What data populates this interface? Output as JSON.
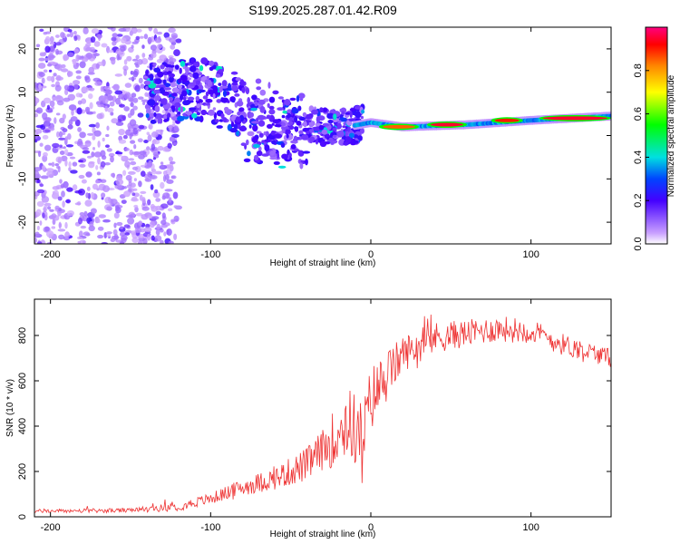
{
  "title": "S199.2025.287.01.42.R09",
  "colors": {
    "snr_line": "#ee3333",
    "frame": "#000000"
  },
  "chart_data": [
    {
      "type": "heatmap",
      "name": "spectrogram",
      "xlabel": "Height of straight line (km)",
      "ylabel": "Frequency (Hz)",
      "xlim": [
        -210,
        150
      ],
      "ylim": [
        -25,
        25
      ],
      "xticks": [
        -200,
        -100,
        0,
        100
      ],
      "yticks": [
        -20,
        -10,
        0,
        10,
        20
      ],
      "colorbar": {
        "label": "Normalized spectral amplitude",
        "range": [
          0,
          1
        ],
        "ticks": [
          "0.0",
          "0.2",
          "0.4",
          "0.6",
          "0.8"
        ],
        "tick_values": [
          0.0,
          0.2,
          0.4,
          0.6,
          0.8
        ]
      },
      "ridge": {
        "description_points_x": [
          -130,
          -110,
          -100,
          -90,
          -70,
          -50,
          -30,
          -15,
          0,
          20,
          60,
          100,
          150
        ],
        "description_points_freq": [
          10,
          11,
          10,
          8,
          6,
          4,
          2,
          2,
          3,
          2,
          2.5,
          3.5,
          4.5
        ],
        "peak_amplitude_regions": [
          {
            "x_start": 5,
            "x_end": 30,
            "freq": 2,
            "amplitude": 0.85
          },
          {
            "x_start": 35,
            "x_end": 60,
            "freq": 2.5,
            "amplitude": 0.95
          },
          {
            "x_start": 75,
            "x_end": 95,
            "freq": 3.5,
            "amplitude": 0.9
          },
          {
            "x_start": 105,
            "x_end": 150,
            "freq": 4,
            "amplitude": 0.95
          }
        ]
      }
    },
    {
      "type": "line",
      "name": "snr",
      "xlabel": "Height of straight line (km)",
      "ylabel": "SNR (10 * v/v)",
      "xlim": [
        -210,
        150
      ],
      "ylim": [
        0,
        960
      ],
      "xticks": [
        -200,
        -100,
        0,
        100
      ],
      "yticks": [
        0,
        200,
        400,
        600,
        800
      ],
      "trend": {
        "x": [
          -210,
          -150,
          -120,
          -100,
          -80,
          -60,
          -40,
          -25,
          -15,
          -5,
          0,
          10,
          20,
          40,
          60,
          80,
          100,
          120,
          150
        ],
        "y": [
          25,
          28,
          45,
          80,
          130,
          170,
          230,
          330,
          420,
          350,
          520,
          620,
          720,
          790,
          810,
          830,
          820,
          760,
          700
        ]
      },
      "noise_amplitude": {
        "x": [
          -210,
          -150,
          -100,
          -60,
          -30,
          -15,
          0,
          20,
          60,
          100,
          150
        ],
        "y": [
          8,
          10,
          25,
          50,
          90,
          170,
          150,
          80,
          60,
          55,
          40
        ]
      }
    }
  ]
}
